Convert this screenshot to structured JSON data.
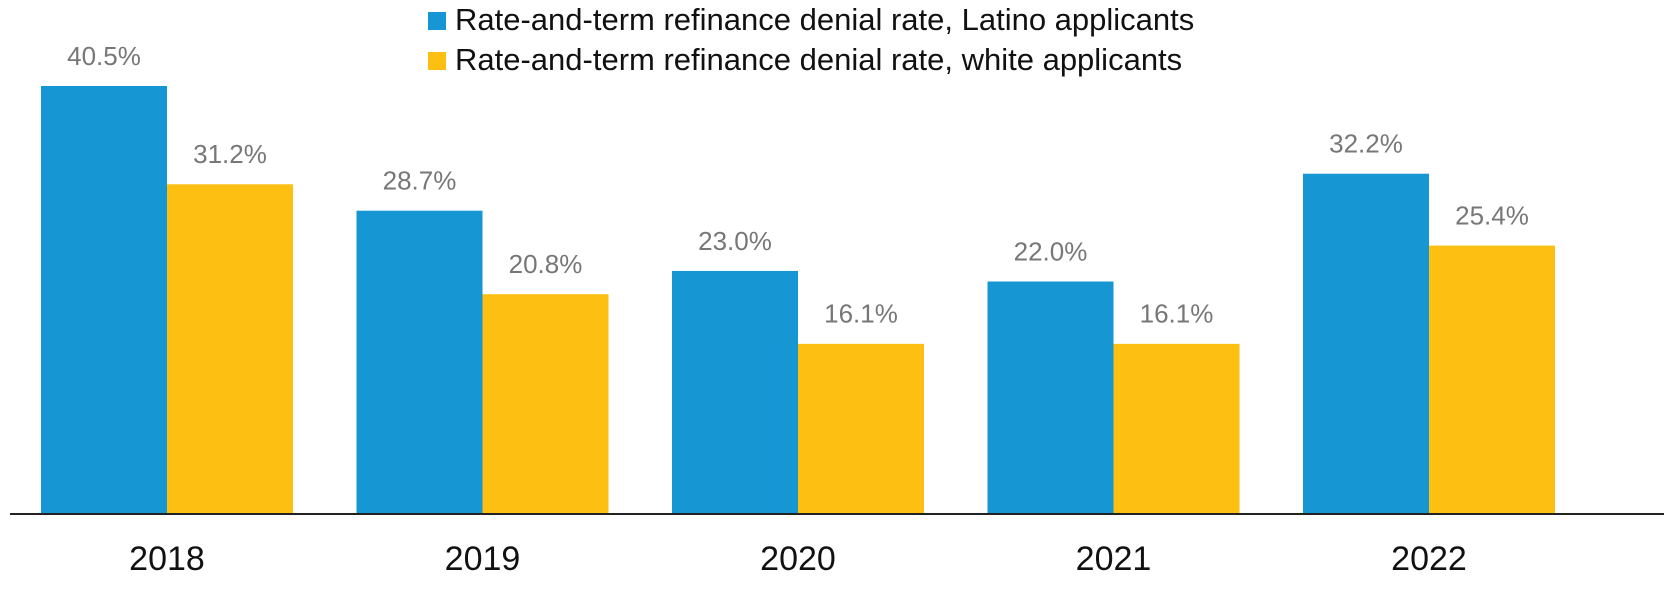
{
  "chart_data": {
    "type": "bar",
    "categories": [
      "2018",
      "2019",
      "2020",
      "2021",
      "2022"
    ],
    "series": [
      {
        "name": "Rate-and-term refinance denial rate, Latino applicants",
        "color": "#1696d2",
        "values": [
          40.5,
          28.7,
          23.0,
          22.0,
          32.2
        ],
        "value_labels": [
          "40.5%",
          "28.7%",
          "23.0%",
          "22.0%",
          "32.2%"
        ]
      },
      {
        "name": "Rate-and-term refinance denial rate, white applicants",
        "color": "#fdbf11",
        "values": [
          31.2,
          20.8,
          16.1,
          16.1,
          25.4
        ],
        "value_labels": [
          "31.2%",
          "20.8%",
          "16.1%",
          "16.1%",
          "25.4%"
        ]
      }
    ],
    "legend": "top"
  }
}
